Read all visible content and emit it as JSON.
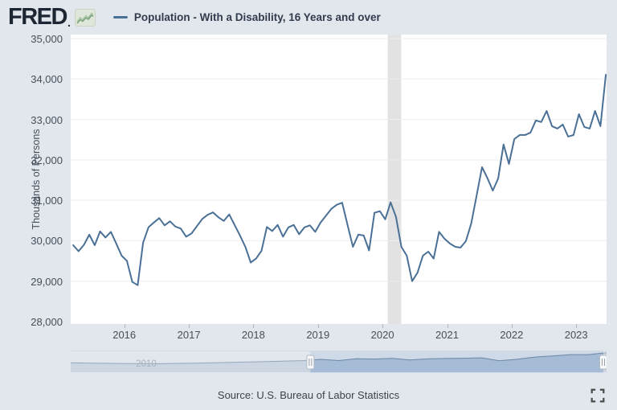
{
  "header": {
    "logo": "FRED",
    "logo_dot": ".",
    "legend_label": "Population - With a Disability, 16 Years and over"
  },
  "colors": {
    "background": "#e2e6ed",
    "plot_bg": "#ffffff",
    "line": "#4a7096",
    "grid": "#ededed",
    "recession_band": "#e2e2e2",
    "axis_text": "#474f59",
    "title_text": "#333c4d",
    "logo_text": "#1d2633",
    "spark_icon_bg": "#dfe7da",
    "spark_icon_line": "#7ba37c",
    "spark_icon_line2": "#aec7a8",
    "minimap_unselected_fill": "#ccd6e2",
    "minimap_unselected_stroke": "#94a7bc",
    "minimap_selected_bg": "#c3d2e4",
    "minimap_selected_fill": "#a6bcd6",
    "minimap_selected_stroke": "#6d89a6",
    "minimap_label": "#a9b1bd",
    "handle_fill": "#f7f8f9",
    "handle_stroke": "#b4bac1",
    "handle_ridge": "#9aa0a8",
    "footer_icon": "#4c4c4c"
  },
  "y_axis": {
    "title": "Thousands of Persons",
    "tick_labels": [
      "35,000",
      "34,000",
      "33,000",
      "32,000",
      "31,000",
      "30,000",
      "29,000",
      "28,000"
    ],
    "tick_values": [
      35000,
      34000,
      33000,
      32000,
      31000,
      30000,
      29000,
      28000
    ]
  },
  "x_axis": {
    "tick_labels": [
      "2016",
      "2017",
      "2018",
      "2019",
      "2020",
      "2021",
      "2022",
      "2023"
    ],
    "tick_values": [
      2016,
      2017,
      2018,
      2019,
      2020,
      2021,
      2022,
      2023
    ]
  },
  "chart_data": {
    "type": "line",
    "title": "Population - With a Disability, 16 Years and over",
    "ylabel": "Thousands of Persons",
    "frequency": "Monthly",
    "x_start_year": 2015,
    "x_start_month": 3,
    "x_domain": [
      2015.17,
      2023.47
    ],
    "ylim": [
      28000,
      35000
    ],
    "ytick_step": 1000,
    "grid": true,
    "legend_position": "top-left",
    "recession_bands": [
      [
        2020.08,
        2020.29
      ]
    ],
    "values": [
      29890,
      29740,
      29900,
      30150,
      29890,
      30230,
      30080,
      30220,
      29930,
      29630,
      29500,
      28980,
      28900,
      29950,
      30330,
      30450,
      30560,
      30380,
      30480,
      30350,
      30300,
      30100,
      30180,
      30360,
      30540,
      30640,
      30700,
      30580,
      30490,
      30650,
      30390,
      30130,
      29850,
      29460,
      29560,
      29750,
      30340,
      30240,
      30390,
      30100,
      30330,
      30390,
      30160,
      30330,
      30380,
      30220,
      30450,
      30620,
      30790,
      30890,
      30940,
      30390,
      29850,
      30150,
      30130,
      29760,
      30690,
      30730,
      30530,
      30950,
      30590,
      29850,
      29630,
      29000,
      29210,
      29630,
      29730,
      29560,
      30220,
      30050,
      29930,
      29850,
      29830,
      29990,
      30430,
      31120,
      31820,
      31550,
      31240,
      31540,
      32380,
      31900,
      32515,
      32615,
      32615,
      32675,
      32975,
      32935,
      33210,
      32835,
      32775,
      32875,
      32575,
      32615,
      33130,
      32815,
      32775,
      33210,
      32835,
      34105
    ]
  },
  "minimap": {
    "label": "2010",
    "x_domain": [
      2008.5,
      2023.5
    ],
    "selection": [
      2015.21,
      2023.41
    ],
    "y_domain": [
      21900,
      34200
    ],
    "x_step_years": 0.5,
    "values": [
      27750,
      27600,
      27450,
      27250,
      27300,
      27200,
      27400,
      27500,
      27800,
      28050,
      28350,
      28600,
      28900,
      29150,
      29950,
      29200,
      30300,
      30150,
      30600,
      29600,
      30250,
      30500,
      30650,
      30900,
      29100,
      30000,
      31400,
      32100,
      32900,
      32900,
      34100
    ]
  },
  "footer": {
    "source": "Source: U.S. Bureau of Labor Statistics"
  }
}
